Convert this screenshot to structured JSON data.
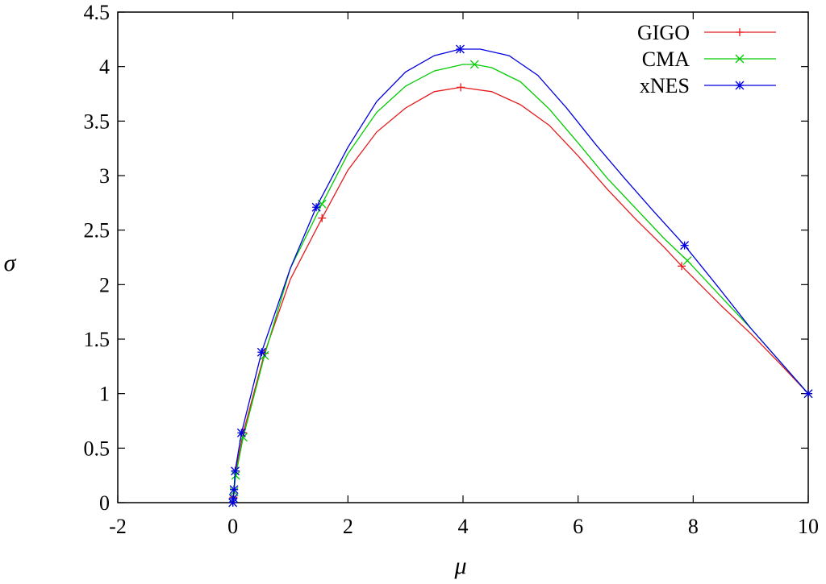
{
  "chart_data": {
    "type": "line",
    "xlabel": "μ",
    "ylabel": "σ",
    "xlim": [
      -2,
      10
    ],
    "ylim": [
      0,
      4.5
    ],
    "xticks": [
      "-2",
      "0",
      "2",
      "4",
      "6",
      "8",
      "10"
    ],
    "yticks": [
      "0",
      "0.5",
      "1",
      "1.5",
      "2",
      "2.5",
      "3",
      "3.5",
      "4",
      "4.5"
    ],
    "grid": false,
    "legend_position": "top-right",
    "series": [
      {
        "name": "GIGO",
        "color": "#e41a1c",
        "marker": "plus",
        "x": [
          0,
          0.01,
          0.02,
          0.05,
          0.18,
          0.55,
          1.0,
          1.55,
          2.0,
          2.5,
          3.0,
          3.5,
          3.96,
          4.5,
          5.0,
          5.5,
          6.0,
          6.5,
          7.0,
          7.5,
          7.8,
          8.5,
          9.0,
          9.5,
          10.0
        ],
        "y": [
          0.0,
          0.05,
          0.12,
          0.29,
          0.64,
          1.37,
          2.05,
          2.61,
          3.05,
          3.4,
          3.62,
          3.77,
          3.81,
          3.77,
          3.65,
          3.46,
          3.18,
          2.88,
          2.6,
          2.34,
          2.17,
          1.8,
          1.55,
          1.28,
          1.0
        ],
        "marker_x": [
          0,
          0.01,
          0.02,
          0.05,
          0.18,
          0.55,
          1.55,
          3.96,
          7.8,
          10.0
        ],
        "marker_y": [
          0.0,
          0.05,
          0.12,
          0.29,
          0.64,
          1.37,
          2.61,
          3.81,
          2.17,
          1.0
        ]
      },
      {
        "name": "CMA",
        "color": "#00cc00",
        "marker": "cross",
        "x": [
          0,
          0.01,
          0.02,
          0.05,
          0.18,
          0.55,
          1.0,
          1.55,
          2.0,
          2.5,
          3.0,
          3.5,
          4.0,
          4.2,
          4.5,
          5.0,
          5.5,
          6.0,
          6.5,
          7.0,
          7.5,
          7.9,
          8.5,
          9.0,
          9.5,
          10.0
        ],
        "y": [
          0.0,
          0.04,
          0.1,
          0.25,
          0.6,
          1.35,
          2.15,
          2.74,
          3.2,
          3.58,
          3.82,
          3.96,
          4.02,
          4.02,
          3.99,
          3.86,
          3.61,
          3.3,
          2.98,
          2.7,
          2.42,
          2.22,
          1.88,
          1.6,
          1.3,
          1.0
        ],
        "marker_x": [
          0,
          0.01,
          0.02,
          0.05,
          0.18,
          0.55,
          1.55,
          4.2,
          7.9,
          10.0
        ],
        "marker_y": [
          0.0,
          0.04,
          0.1,
          0.25,
          0.6,
          1.35,
          2.74,
          4.02,
          2.22,
          1.0
        ]
      },
      {
        "name": "xNES",
        "color": "#0000e0",
        "marker": "star",
        "x": [
          0,
          0.01,
          0.02,
          0.04,
          0.15,
          0.5,
          1.0,
          1.45,
          2.0,
          2.5,
          3.0,
          3.5,
          3.95,
          4.3,
          4.8,
          5.3,
          5.8,
          6.3,
          6.8,
          7.3,
          7.85,
          8.4,
          9.0,
          9.5,
          10.0
        ],
        "y": [
          0.0,
          0.04,
          0.12,
          0.29,
          0.64,
          1.38,
          2.15,
          2.71,
          3.26,
          3.68,
          3.95,
          4.1,
          4.16,
          4.16,
          4.1,
          3.92,
          3.62,
          3.29,
          2.98,
          2.68,
          2.36,
          2.0,
          1.6,
          1.3,
          1.0
        ],
        "marker_x": [
          0,
          0.01,
          0.02,
          0.04,
          0.15,
          0.5,
          1.45,
          3.95,
          7.85,
          10.0
        ],
        "marker_y": [
          0.0,
          0.04,
          0.12,
          0.29,
          0.64,
          1.38,
          2.71,
          4.16,
          2.36,
          1.0
        ]
      }
    ]
  }
}
